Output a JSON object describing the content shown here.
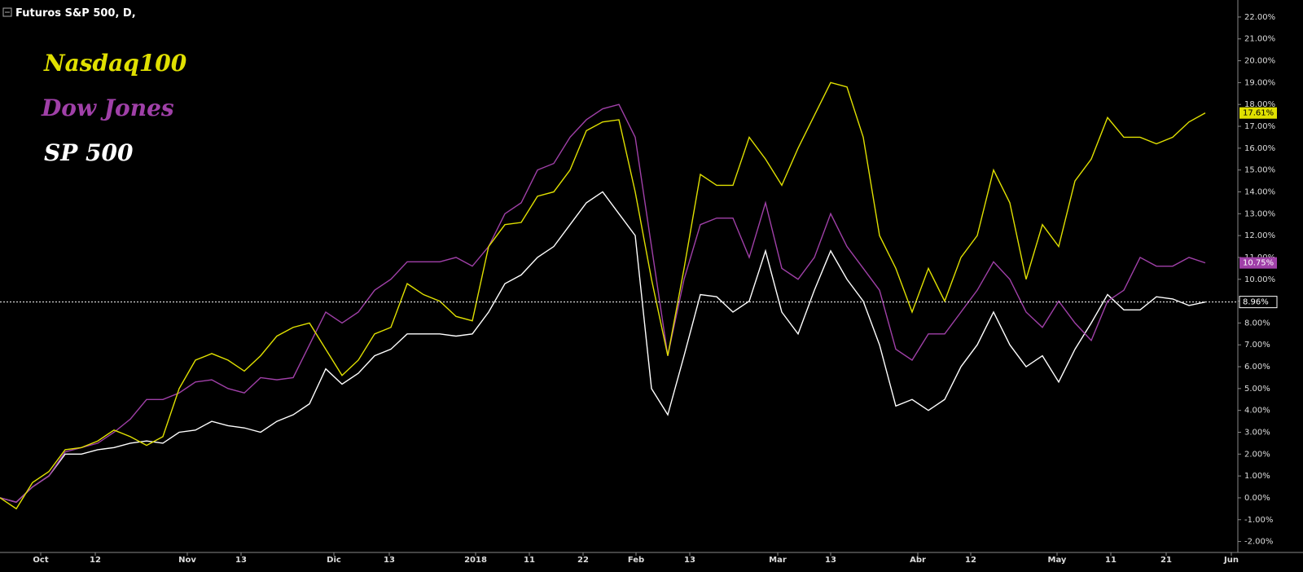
{
  "chart_data": {
    "type": "line",
    "title": "Futuros S&P 500, D,",
    "xlim": [
      0,
      76
    ],
    "xticks": [
      {
        "value": 2.5,
        "label": "Oct"
      },
      {
        "value": 5.85,
        "label": "12"
      },
      {
        "value": 11.5,
        "label": "Nov"
      },
      {
        "value": 14.8,
        "label": "13"
      },
      {
        "value": 20.5,
        "label": "Dic"
      },
      {
        "value": 23.9,
        "label": "13"
      },
      {
        "value": 29.2,
        "label": "2018"
      },
      {
        "value": 32.5,
        "label": "11"
      },
      {
        "value": 35.8,
        "label": "22"
      },
      {
        "value": 39.05,
        "label": "Feb"
      },
      {
        "value": 42.35,
        "label": "13"
      },
      {
        "value": 47.75,
        "label": "Mar"
      },
      {
        "value": 51,
        "label": "13"
      },
      {
        "value": 56.35,
        "label": "Abr"
      },
      {
        "value": 59.6,
        "label": "12"
      },
      {
        "value": 64.9,
        "label": "May"
      },
      {
        "value": 68.2,
        "label": "11"
      },
      {
        "value": 71.6,
        "label": "21"
      },
      {
        "value": 75.6,
        "label": "Jun"
      }
    ],
    "ylim": [
      -2.5,
      22.78
    ],
    "yticks": [
      {
        "value": -2,
        "label": "-2.00%"
      },
      {
        "value": -1,
        "label": "-1.00%"
      },
      {
        "value": 0,
        "label": "0.00%"
      },
      {
        "value": 1,
        "label": "1.00%"
      },
      {
        "value": 2,
        "label": "2.00%"
      },
      {
        "value": 3,
        "label": "3.00%"
      },
      {
        "value": 4,
        "label": "4.00%"
      },
      {
        "value": 5,
        "label": "5.00%"
      },
      {
        "value": 6,
        "label": "6.00%"
      },
      {
        "value": 7,
        "label": "7.00%"
      },
      {
        "value": 8,
        "label": "8.00%"
      },
      {
        "value": 9,
        "label": "9.00%"
      },
      {
        "value": 10,
        "label": "10.00%"
      },
      {
        "value": 11,
        "label": "11.00%"
      },
      {
        "value": 12,
        "label": "12.00%"
      },
      {
        "value": 13,
        "label": "13.00%"
      },
      {
        "value": 14,
        "label": "14.00%"
      },
      {
        "value": 15,
        "label": "15.00%"
      },
      {
        "value": 16,
        "label": "16.00%"
      },
      {
        "value": 17,
        "label": "17.00%"
      },
      {
        "value": 18,
        "label": "18.00%"
      },
      {
        "value": 19,
        "label": "19.00%"
      },
      {
        "value": 20,
        "label": "20.00%"
      },
      {
        "value": 21,
        "label": "21.00%"
      },
      {
        "value": 22,
        "label": "22.00%"
      }
    ],
    "series": [
      {
        "name": "Nasdaq100",
        "color": "#e0e000",
        "last_label": "17.61%",
        "values": [
          0,
          -0.5,
          0.7,
          1.2,
          2.2,
          2.3,
          2.6,
          3.1,
          2.8,
          2.4,
          2.8,
          5.0,
          6.3,
          6.6,
          6.3,
          5.8,
          6.5,
          7.4,
          7.8,
          8.0,
          6.8,
          5.6,
          6.3,
          7.5,
          7.8,
          9.8,
          9.3,
          9.0,
          8.3,
          8.1,
          11.5,
          12.5,
          12.6,
          13.8,
          14.0,
          15.0,
          16.8,
          17.2,
          17.3,
          14.0,
          10.0,
          6.5,
          10.5,
          14.8,
          14.3,
          14.3,
          16.5,
          15.5,
          14.3,
          16.0,
          17.5,
          19.0,
          18.8,
          16.5,
          12.0,
          10.5,
          8.5,
          10.5,
          9.0,
          11.0,
          12.0,
          15.0,
          13.5,
          10.0,
          12.5,
          11.5,
          14.5,
          15.5,
          17.4,
          16.5,
          16.5,
          16.2,
          16.5,
          17.2,
          17.61
        ]
      },
      {
        "name": "Dow Jones",
        "color": "#a040a8",
        "last_label": "10.75%",
        "values": [
          0,
          -0.2,
          0.5,
          1.0,
          2.1,
          2.3,
          2.5,
          3.0,
          3.6,
          4.5,
          4.5,
          4.8,
          5.3,
          5.4,
          5.0,
          4.8,
          5.5,
          5.4,
          5.5,
          7.0,
          8.5,
          8.0,
          8.5,
          9.5,
          10.0,
          10.8,
          10.8,
          10.8,
          11.0,
          10.6,
          11.5,
          13.0,
          13.5,
          15.0,
          15.3,
          16.5,
          17.3,
          17.8,
          18.0,
          16.5,
          11.5,
          6.5,
          10.0,
          12.5,
          12.8,
          12.8,
          11.0,
          13.5,
          10.5,
          10.0,
          11.0,
          13.0,
          11.5,
          10.5,
          9.5,
          6.8,
          6.3,
          7.5,
          7.5,
          8.5,
          9.5,
          10.8,
          10.0,
          8.5,
          7.8,
          9.0,
          8.0,
          7.2,
          9.0,
          9.5,
          11.0,
          10.6,
          10.6,
          11.0,
          10.75
        ]
      },
      {
        "name": "SP 500",
        "color": "#ffffff",
        "last_label": "8.96%",
        "values": [
          0,
          -0.2,
          0.5,
          1.0,
          2.0,
          2.0,
          2.2,
          2.3,
          2.5,
          2.6,
          2.5,
          3.0,
          3.1,
          3.5,
          3.3,
          3.2,
          3.0,
          3.5,
          3.8,
          4.3,
          5.9,
          5.2,
          5.7,
          6.5,
          6.8,
          7.5,
          7.5,
          7.5,
          7.4,
          7.5,
          8.5,
          9.8,
          10.2,
          11.0,
          11.5,
          12.5,
          13.5,
          14.0,
          13.0,
          12.0,
          5.0,
          3.8,
          6.5,
          9.3,
          9.2,
          8.5,
          9.0,
          11.3,
          8.5,
          7.5,
          9.5,
          11.3,
          10.0,
          9.0,
          7.0,
          4.2,
          4.5,
          4.0,
          4.5,
          6.0,
          7.0,
          8.5,
          7.0,
          6.0,
          6.5,
          5.3,
          6.8,
          8.0,
          9.3,
          8.6,
          8.6,
          9.2,
          9.1,
          8.8,
          8.96
        ]
      }
    ]
  }
}
